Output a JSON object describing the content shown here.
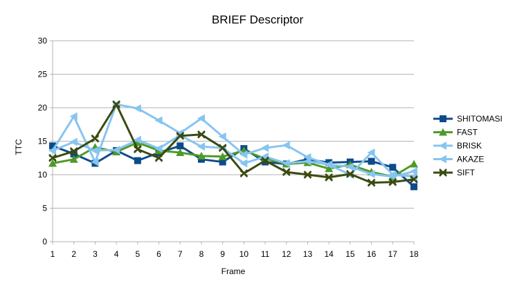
{
  "chart_data": {
    "type": "line",
    "title": "BRIEF Descriptor",
    "xlabel": "Frame",
    "ylabel": "TTC",
    "categories": [
      "1",
      "2",
      "3",
      "4",
      "5",
      "6",
      "7",
      "8",
      "9",
      "10",
      "11",
      "12",
      "13",
      "14",
      "15",
      "16",
      "17",
      "18"
    ],
    "ylim": [
      0,
      30
    ],
    "yticks": [
      "0",
      "5",
      "10",
      "15",
      "20",
      "25",
      "30"
    ],
    "grid": "horizontal",
    "legend_position": "right",
    "series": [
      {
        "name": "SHITOMASI",
        "color": "#0d4b8a",
        "marker": "square",
        "values": [
          14.3,
          13.1,
          11.7,
          13.6,
          12.1,
          13.3,
          14.3,
          12.3,
          11.9,
          13.9,
          11.9,
          11.6,
          12.3,
          11.8,
          11.9,
          12.0,
          11.1,
          8.2
        ]
      },
      {
        "name": "FAST",
        "color": "#4e9a28",
        "marker": "triangle",
        "values": [
          11.7,
          12.3,
          14.1,
          13.4,
          14.8,
          13.6,
          13.3,
          12.8,
          12.7,
          13.6,
          12.4,
          11.6,
          11.8,
          10.9,
          11.5,
          10.4,
          9.7,
          11.6
        ]
      },
      {
        "name": "BRISK",
        "color": "#86c5f0",
        "marker": "triangle-left",
        "values": [
          13.6,
          18.7,
          11.9,
          20.5,
          19.9,
          18.1,
          16.2,
          18.4,
          15.7,
          13.0,
          14.0,
          14.4,
          12.6,
          11.5,
          10.0,
          13.3,
          10.0,
          9.7
        ]
      },
      {
        "name": "AKAZE",
        "color": "#86c5f0",
        "marker": "triangle-left",
        "values": [
          13.6,
          14.9,
          13.6,
          13.7,
          15.2,
          13.9,
          15.9,
          14.2,
          14.0,
          11.7,
          12.7,
          11.7,
          12.0,
          11.5,
          11.2,
          10.1,
          9.7,
          10.5
        ]
      },
      {
        "name": "SIFT",
        "color": "#3a4a10",
        "marker": "x",
        "values": [
          12.5,
          13.5,
          15.4,
          20.5,
          13.8,
          12.5,
          15.8,
          16.0,
          14.0,
          10.2,
          12.1,
          10.4,
          10.0,
          9.6,
          10.1,
          8.8,
          8.9,
          9.3
        ]
      }
    ]
  }
}
